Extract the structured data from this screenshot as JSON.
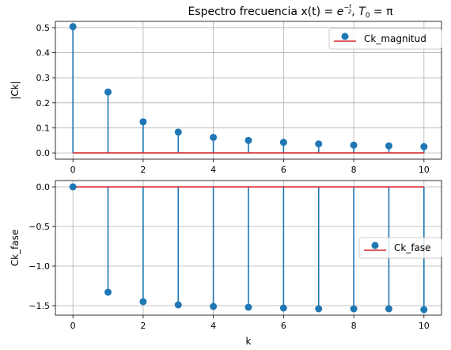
{
  "figure": {
    "title_prefix": "Espectro frecuencia x(t) = ",
    "title_exp_base": "e",
    "title_exp_sup": "−",
    "title_exp_num": "t",
    "title_exp_den": "2",
    "title_sep": ", ",
    "title_T": "T",
    "title_T_sub": "0",
    "title_eq_pi": " = π"
  },
  "colors": {
    "stem": "#1f77b4",
    "baseline": "#d62728",
    "grid": "#b0b0b0",
    "axis": "#000000"
  },
  "chart_data": [
    {
      "type": "stem",
      "ylabel": "|Ck|",
      "xlabel": "",
      "legend_label": "Ck_magnitud",
      "legend_position": "upper right",
      "grid": true,
      "xlim": [
        -0.5,
        10.5
      ],
      "ylim": [
        -0.025,
        0.525
      ],
      "x_ticks": [
        0,
        2,
        4,
        6,
        8,
        10
      ],
      "x_tick_labels": [
        "0",
        "2",
        "4",
        "6",
        "8",
        "10"
      ],
      "y_ticks": [
        0.0,
        0.1,
        0.2,
        0.3,
        0.4,
        0.5
      ],
      "y_tick_labels": [
        "0.0",
        "0.1",
        "0.2",
        "0.3",
        "0.4",
        "0.5"
      ],
      "baseline": 0,
      "x": [
        0,
        1,
        2,
        3,
        4,
        5,
        6,
        7,
        8,
        9,
        10
      ],
      "y": [
        0.504,
        0.243,
        0.124,
        0.083,
        0.062,
        0.05,
        0.042,
        0.036,
        0.031,
        0.028,
        0.025
      ]
    },
    {
      "type": "stem",
      "ylabel": "Ck_fase",
      "xlabel": "k",
      "legend_label": "Ck_fase",
      "legend_position": "center right",
      "grid": true,
      "xlim": [
        -0.5,
        10.5
      ],
      "ylim": [
        -1.62,
        0.08
      ],
      "x_ticks": [
        0,
        2,
        4,
        6,
        8,
        10
      ],
      "x_tick_labels": [
        "0",
        "2",
        "4",
        "6",
        "8",
        "10"
      ],
      "y_ticks": [
        0.0,
        -0.5,
        -1.0,
        -1.5
      ],
      "y_tick_labels": [
        "0.0",
        "−0.5",
        "−1.0",
        "−1.5"
      ],
      "baseline": 0,
      "x": [
        0,
        1,
        2,
        3,
        4,
        5,
        6,
        7,
        8,
        9,
        10
      ],
      "y": [
        0.0,
        -1.33,
        -1.45,
        -1.49,
        -1.51,
        -1.52,
        -1.53,
        -1.54,
        -1.54,
        -1.54,
        -1.55
      ]
    }
  ]
}
